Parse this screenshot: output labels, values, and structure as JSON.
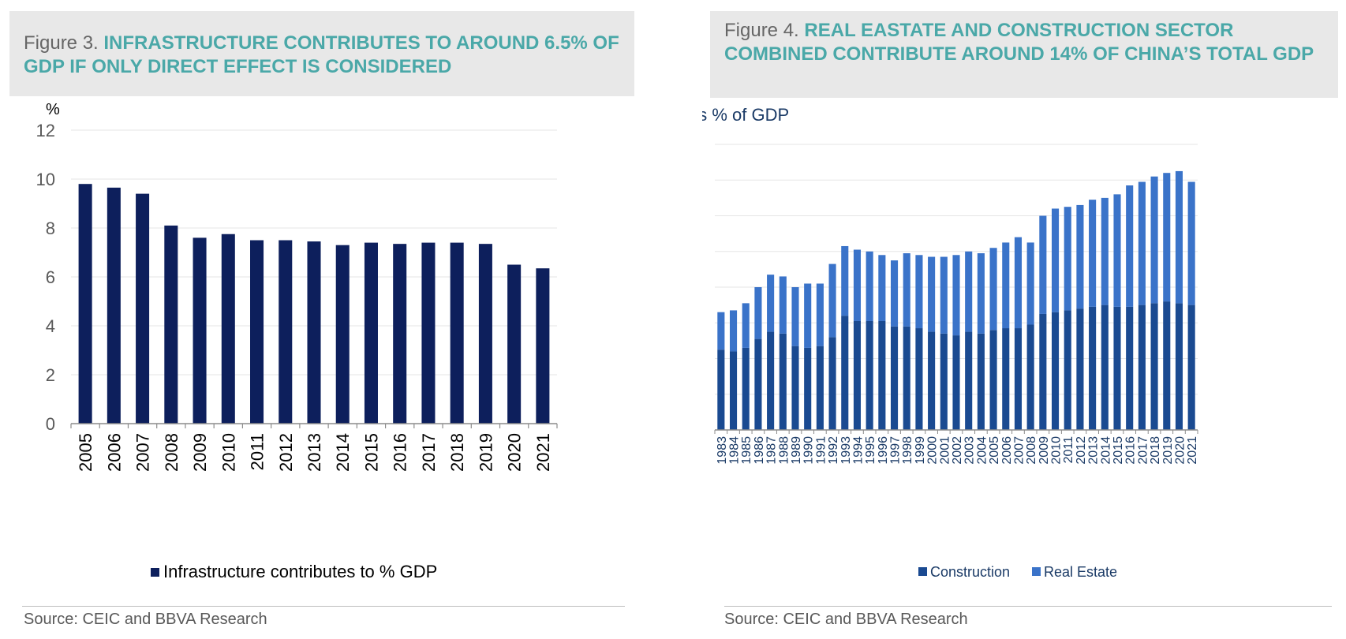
{
  "left_figure": {
    "prefix": "Figure 3. ",
    "title": "INFRASTRUCTURE CONTRIBUTES TO AROUND 6.5% OF GDP IF ONLY DIRECT EFFECT IS CONSIDERED",
    "source": "Source: CEIC and BBVA Research"
  },
  "right_figure": {
    "prefix": "Figure 4. ",
    "title": "REAL EASTATE AND CONSTRUCTION SECTOR COMBINED CONTRIBUTE AROUND 14% OF CHINA’S TOTAL GDP",
    "source": "Source: CEIC and BBVA Research"
  },
  "colors": {
    "infrastructure": "#0d1f5c",
    "construction": "#1a4a91",
    "real_estate": "#3a73c9",
    "title_accent": "#4aa8a8",
    "grid": "#e6e6e6"
  },
  "chart_data": [
    {
      "type": "bar",
      "ylabel": "%",
      "ylim": [
        0,
        12
      ],
      "yticks": [
        0,
        2,
        4,
        6,
        8,
        10,
        12
      ],
      "categories": [
        "2005",
        "2006",
        "2007",
        "2008",
        "2009",
        "2010",
        "2011",
        "2012",
        "2013",
        "2014",
        "2015",
        "2016",
        "2017",
        "2018",
        "2019",
        "2020",
        "2021"
      ],
      "series": [
        {
          "name": "Infrastructure contributes to % GDP",
          "values": [
            9.8,
            9.65,
            9.4,
            8.1,
            7.6,
            7.75,
            7.5,
            7.5,
            7.45,
            7.3,
            7.4,
            7.35,
            7.4,
            7.4,
            7.35,
            6.5,
            6.35
          ]
        }
      ],
      "legend": "bottom",
      "grid": true
    },
    {
      "type": "bar",
      "stacked": true,
      "ylabel": "as % of GDP",
      "ylim": [
        0,
        16
      ],
      "yticks": [
        0,
        2,
        4,
        6,
        8,
        10,
        12,
        14,
        16
      ],
      "categories": [
        "1983",
        "1984",
        "1985",
        "1986",
        "1987",
        "1988",
        "1989",
        "1990",
        "1991",
        "1992",
        "1993",
        "1994",
        "1995",
        "1996",
        "1997",
        "1998",
        "1999",
        "2000",
        "2001",
        "2002",
        "2003",
        "2004",
        "2005",
        "2006",
        "2007",
        "2008",
        "2009",
        "2010",
        "2011",
        "2012",
        "2013",
        "2014",
        "2015",
        "2016",
        "2017",
        "2018",
        "2019",
        "2020",
        "2021"
      ],
      "series": [
        {
          "name": "Construction",
          "values": [
            4.5,
            4.4,
            4.6,
            5.1,
            5.5,
            5.4,
            4.7,
            4.6,
            4.7,
            5.2,
            6.4,
            6.1,
            6.1,
            6.1,
            5.8,
            5.8,
            5.7,
            5.5,
            5.4,
            5.3,
            5.5,
            5.4,
            5.6,
            5.7,
            5.7,
            5.9,
            6.5,
            6.6,
            6.7,
            6.8,
            6.9,
            7.0,
            6.9,
            6.9,
            7.0,
            7.1,
            7.2,
            7.1,
            7.0
          ]
        },
        {
          "name": "Real Estate",
          "values": [
            2.1,
            2.3,
            2.5,
            2.9,
            3.2,
            3.2,
            3.3,
            3.6,
            3.5,
            4.1,
            3.9,
            4.0,
            3.9,
            3.7,
            3.7,
            4.1,
            4.1,
            4.2,
            4.3,
            4.5,
            4.5,
            4.5,
            4.6,
            4.8,
            5.1,
            4.6,
            5.5,
            5.8,
            5.8,
            5.8,
            6.0,
            6.0,
            6.3,
            6.8,
            6.9,
            7.1,
            7.2,
            7.4,
            6.9
          ]
        }
      ],
      "legend": "bottom",
      "grid": true
    }
  ]
}
